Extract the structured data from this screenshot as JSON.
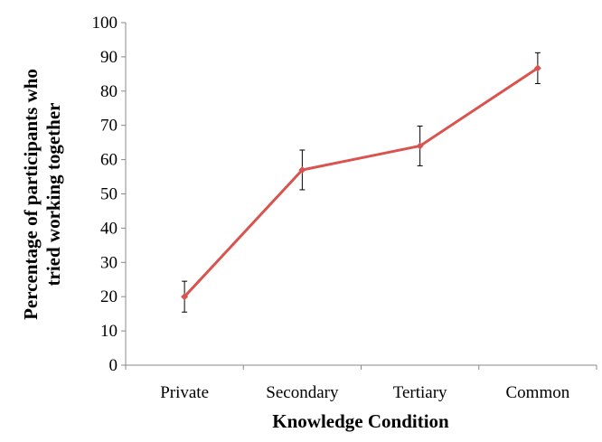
{
  "chart_data": {
    "type": "line",
    "title": "",
    "xlabel": "Knowledge Condition",
    "ylabel_lines": [
      "Percentage of participants who",
      "tried working together"
    ],
    "categories": [
      "Private",
      "Secondary",
      "Tertiary",
      "Common"
    ],
    "series": [
      {
        "values": [
          20,
          57,
          64,
          86.7
        ],
        "error": [
          4.5,
          5.8,
          5.8,
          4.5
        ],
        "color": "#d9534f"
      }
    ],
    "ylim": [
      0,
      100
    ],
    "yticks": [
      0,
      10,
      20,
      30,
      40,
      50,
      60,
      70,
      80,
      90,
      100
    ],
    "grid": false,
    "legend": "none"
  }
}
